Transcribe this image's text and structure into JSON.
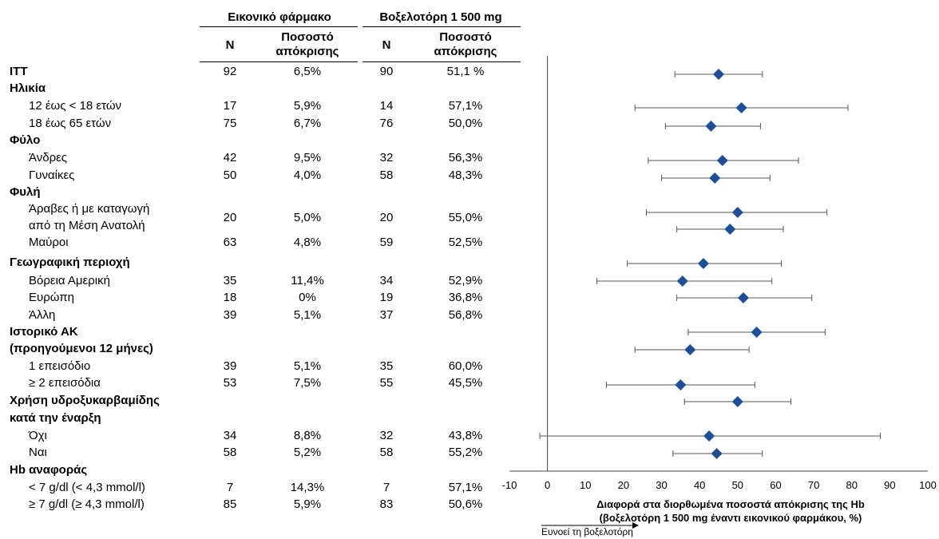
{
  "table": {
    "group1_header": "Εικονικό φάρμακο",
    "group2_header": "Βοξελοτόρη 1 500 mg",
    "n_header": "N",
    "rate_header_line1": "Ποσοστό",
    "rate_header_line2": "απόκρισης"
  },
  "rows": [
    {
      "label": "ITT",
      "bold": true,
      "indent": false,
      "n1": "92",
      "r1": "6,5%",
      "n2": "90",
      "r2": "51,1 %"
    },
    {
      "label": "Ηλικία",
      "bold": true,
      "indent": false
    },
    {
      "label": "12 έως < 18 ετών",
      "bold": false,
      "indent": true,
      "n1": "17",
      "r1": "5,9%",
      "n2": "14",
      "r2": "57,1%"
    },
    {
      "label": "18 έως 65 ετών",
      "bold": false,
      "indent": true,
      "n1": "75",
      "r1": "6,7%",
      "n2": "76",
      "r2": "50,0%"
    },
    {
      "label": "Φύλο",
      "bold": true,
      "indent": false
    },
    {
      "label": "Άνδρες",
      "bold": false,
      "indent": true,
      "n1": "42",
      "r1": "9,5%",
      "n2": "32",
      "r2": "56,3%"
    },
    {
      "label": "Γυναίκες",
      "bold": false,
      "indent": true,
      "n1": "50",
      "r1": "4,0%",
      "n2": "58",
      "r2": "48,3%"
    },
    {
      "label": "Φυλή",
      "bold": true,
      "indent": false
    },
    {
      "label": "Άραβες ή με καταγωγή",
      "label2": "από τη Μέση Ανατολή",
      "bold": false,
      "indent": true,
      "n1": "20",
      "r1": "5,0%",
      "n2": "20",
      "r2": "55,0%"
    },
    {
      "label": "Μαύροι",
      "bold": false,
      "indent": true,
      "n1": "63",
      "r1": "4,8%",
      "n2": "59",
      "r2": "52,5%"
    },
    {
      "label": "Γεωγραφική περιοχή",
      "bold": true,
      "indent": false
    },
    {
      "label": "Βόρεια Αμερική",
      "bold": false,
      "indent": true,
      "n1": "35",
      "r1": "11,4%",
      "n2": "34",
      "r2": "52,9%"
    },
    {
      "label": "Ευρώπη",
      "bold": false,
      "indent": true,
      "n1": "18",
      "r1": "0%",
      "n2": "19",
      "r2": "36,8%"
    },
    {
      "label": "Άλλη",
      "bold": false,
      "indent": true,
      "n1": "39",
      "r1": "5,1%",
      "n2": "37",
      "r2": "56,8%"
    },
    {
      "label": "Ιστορικό ΑΚ",
      "bold": true,
      "indent": false
    },
    {
      "label": "(προηγούμενοι 12 μήνες)",
      "bold": true,
      "indent": false
    },
    {
      "label": "1 επεισόδιο",
      "bold": false,
      "indent": true,
      "n1": "39",
      "r1": "5,1%",
      "n2": "35",
      "r2": "60,0%"
    },
    {
      "label": "≥ 2 επεισόδια",
      "bold": false,
      "indent": true,
      "n1": "53",
      "r1": "7,5%",
      "n2": "55",
      "r2": "45,5%"
    },
    {
      "label": "Χρήση υδροξυκαρβαμίδης",
      "bold": true,
      "indent": false
    },
    {
      "label": "κατά την έναρξη",
      "bold": true,
      "indent": false
    },
    {
      "label": "Όχι",
      "bold": false,
      "indent": true,
      "n1": "34",
      "r1": "8,8%",
      "n2": "32",
      "r2": "43,8%"
    },
    {
      "label": "Ναι",
      "bold": false,
      "indent": true,
      "n1": "58",
      "r1": "5,2%",
      "n2": "58",
      "r2": "55,2%"
    },
    {
      "label": "Hb αναφοράς",
      "bold": true,
      "indent": false
    },
    {
      "label": "< 7 g/dl (< 4,3 mmol/l)",
      "bold": false,
      "indent": true,
      "n1": "7",
      "r1": "14,3%",
      "n2": "7",
      "r2": "57,1%"
    },
    {
      "label": "≥ 7 g/dl (≥ 4,3 mmol/l)",
      "bold": false,
      "indent": true,
      "n1": "85",
      "r1": "5,9%",
      "n2": "83",
      "r2": "50,6%"
    }
  ],
  "chart_data": {
    "type": "scatter",
    "xlabel_line1": "Διαφορά στα διορθωμένα ποσοστά απόκρισης της Hb",
    "xlabel_line2": "(βοξελοτόρη 1 500 mg έναντι εικονικού φαρμάκου, %)",
    "favors_label": "Ευνοεί τη βοξελοτόρη",
    "xlim": [
      -10,
      100
    ],
    "xticks": [
      -10,
      0,
      10,
      20,
      30,
      40,
      50,
      60,
      70,
      80,
      90,
      100
    ],
    "reference_line_x": 0,
    "marker_color": "#1f4e96",
    "points": [
      {
        "estimate": 45,
        "ci_low": 33.5,
        "ci_high": 56.5
      },
      {
        "estimate": 51,
        "ci_low": 23,
        "ci_high": 79
      },
      {
        "estimate": 43,
        "ci_low": 31,
        "ci_high": 56
      },
      {
        "estimate": 46,
        "ci_low": 26.5,
        "ci_high": 66
      },
      {
        "estimate": 44,
        "ci_low": 30,
        "ci_high": 58.5
      },
      {
        "estimate": 50,
        "ci_low": 26,
        "ci_high": 73.5
      },
      {
        "estimate": 48,
        "ci_low": 34,
        "ci_high": 62
      },
      {
        "estimate": 41,
        "ci_low": 21,
        "ci_high": 61.5
      },
      {
        "estimate": 35.5,
        "ci_low": 13,
        "ci_high": 59
      },
      {
        "estimate": 51.5,
        "ci_low": 34,
        "ci_high": 69.5
      },
      {
        "estimate": 55,
        "ci_low": 37,
        "ci_high": 73
      },
      {
        "estimate": 37.5,
        "ci_low": 23,
        "ci_high": 53
      },
      {
        "estimate": 35,
        "ci_low": 15.5,
        "ci_high": 54.5
      },
      {
        "estimate": 50,
        "ci_low": 36,
        "ci_high": 64
      },
      {
        "estimate": 42.5,
        "ci_low": -2,
        "ci_high": 87.5
      },
      {
        "estimate": 44.5,
        "ci_low": 33,
        "ci_high": 56.5
      }
    ]
  }
}
